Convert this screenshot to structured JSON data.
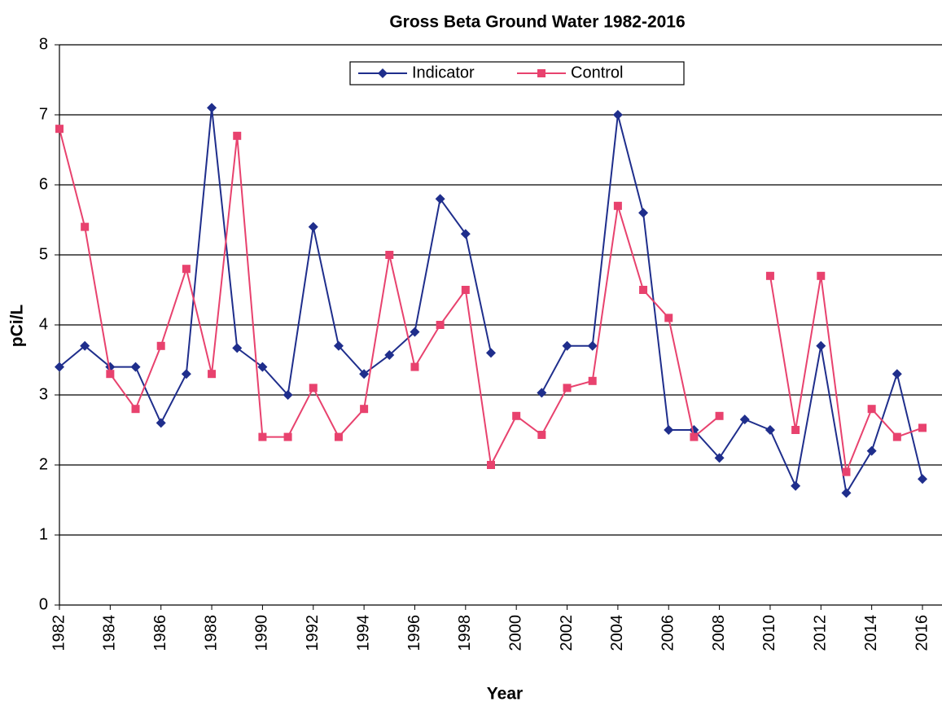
{
  "chart_data": {
    "type": "line",
    "title": "Gross Beta Ground Water 1982-2016",
    "x_label": "Year",
    "y_label": "pCi/L",
    "x": [
      1982,
      1983,
      1984,
      1985,
      1986,
      1987,
      1988,
      1989,
      1990,
      1991,
      1992,
      1993,
      1994,
      1995,
      1996,
      1997,
      1998,
      1999,
      2000,
      2001,
      2002,
      2003,
      2004,
      2005,
      2006,
      2007,
      2008,
      2009,
      2010,
      2011,
      2012,
      2013,
      2014,
      2015,
      2016
    ],
    "series": [
      {
        "name": "Indicator",
        "color": "#1f2e8c",
        "marker": "diamond",
        "values": [
          3.4,
          3.7,
          3.4,
          3.4,
          2.6,
          3.3,
          7.1,
          3.67,
          3.4,
          3.0,
          5.4,
          3.7,
          3.3,
          3.57,
          3.9,
          5.8,
          5.3,
          3.6,
          null,
          3.03,
          3.7,
          3.7,
          7.0,
          5.6,
          2.5,
          2.5,
          2.1,
          2.65,
          2.5,
          1.7,
          3.7,
          1.6,
          2.2,
          3.3,
          1.8
        ]
      },
      {
        "name": "Control",
        "color": "#e8426e",
        "marker": "square",
        "values": [
          6.8,
          5.4,
          3.3,
          2.8,
          3.7,
          4.8,
          3.3,
          6.7,
          2.4,
          2.4,
          3.1,
          2.4,
          2.8,
          5.0,
          3.4,
          4.0,
          4.5,
          2.0,
          2.7,
          2.43,
          3.1,
          3.2,
          5.7,
          4.5,
          4.1,
          2.4,
          2.7,
          null,
          4.7,
          2.5,
          4.7,
          1.9,
          2.8,
          2.4,
          2.53
        ]
      }
    ],
    "xlim": [
      1982,
      2016
    ],
    "xticks": [
      1982,
      1984,
      1986,
      1988,
      1990,
      1992,
      1994,
      1996,
      1998,
      2000,
      2002,
      2004,
      2006,
      2008,
      2010,
      2012,
      2014,
      2016
    ],
    "ylim": [
      0,
      8
    ],
    "yticks": [
      0,
      1,
      2,
      3,
      4,
      5,
      6,
      7,
      8
    ],
    "grid": true,
    "legend": "top"
  }
}
